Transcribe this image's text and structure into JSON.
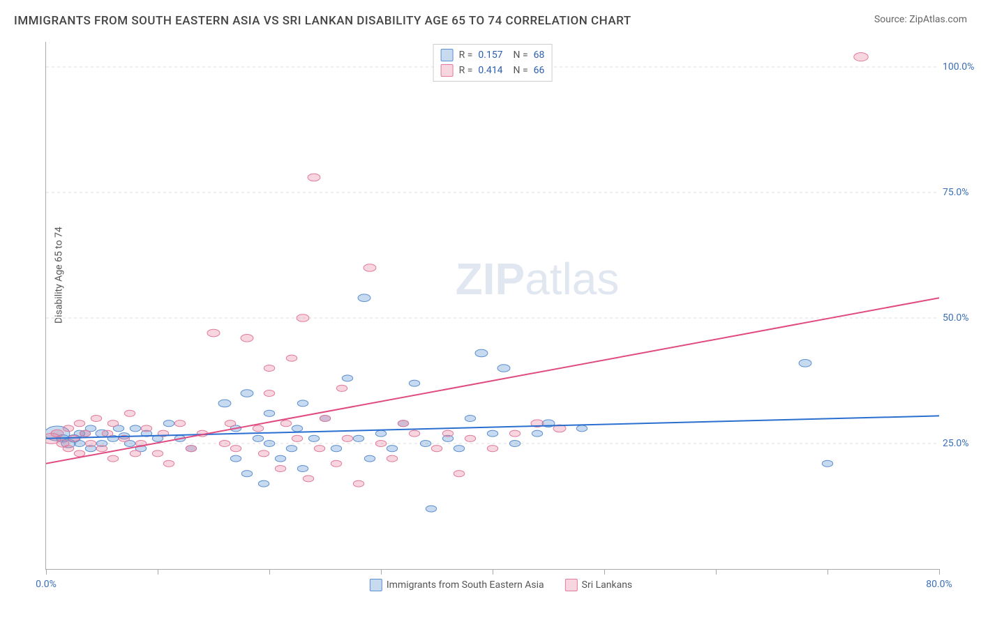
{
  "title": "IMMIGRANTS FROM SOUTH EASTERN ASIA VS SRI LANKAN DISABILITY AGE 65 TO 74 CORRELATION CHART",
  "source": "Source: ZipAtlas.com",
  "ylabel": "Disability Age 65 to 74",
  "watermark_a": "ZIP",
  "watermark_b": "atlas",
  "chart": {
    "type": "scatter-with-regression",
    "xlim": [
      0,
      80
    ],
    "ylim": [
      0,
      105
    ],
    "xtick_positions": [
      0,
      10,
      20,
      30,
      40,
      50,
      60,
      70,
      80
    ],
    "xtick_labels": {
      "0": "0.0%",
      "80": "80.0%"
    },
    "ytick_positions": [
      25,
      50,
      75,
      100
    ],
    "ytick_labels": {
      "25": "25.0%",
      "50": "50.0%",
      "75": "75.0%",
      "100": "100.0%"
    },
    "background_color": "#ffffff",
    "grid_color": "#dddddd",
    "series": [
      {
        "name": "Immigrants from South Eastern Asia",
        "fill": "rgba(96,150,210,0.35)",
        "stroke": "#5a8fd0",
        "line_color": "#2a6fd0",
        "R": "0.157",
        "N": "68",
        "reg_y0": 26.0,
        "reg_y1": 30.5,
        "points": [
          [
            1,
            27,
            14
          ],
          [
            1.5,
            26,
            7
          ],
          [
            2,
            25,
            8
          ],
          [
            2.5,
            26,
            7
          ],
          [
            3,
            27,
            6
          ],
          [
            3,
            25,
            6
          ],
          [
            3.5,
            27,
            6
          ],
          [
            4,
            24,
            6
          ],
          [
            4,
            28,
            6
          ],
          [
            5,
            27,
            7
          ],
          [
            5,
            25,
            6
          ],
          [
            6,
            26,
            6
          ],
          [
            6.5,
            28,
            6
          ],
          [
            7,
            26.5,
            6
          ],
          [
            7.5,
            25,
            6
          ],
          [
            8,
            28,
            6
          ],
          [
            8.5,
            24,
            6
          ],
          [
            9,
            27,
            6
          ],
          [
            10,
            26,
            6
          ],
          [
            11,
            29,
            6
          ],
          [
            12,
            26,
            6
          ],
          [
            13,
            24,
            6
          ],
          [
            16,
            33,
            7
          ],
          [
            17,
            28,
            6
          ],
          [
            17,
            22,
            6
          ],
          [
            18,
            19,
            6
          ],
          [
            18,
            35,
            7
          ],
          [
            19,
            26,
            6
          ],
          [
            19.5,
            17,
            6
          ],
          [
            20,
            31,
            6
          ],
          [
            20,
            25,
            6
          ],
          [
            21,
            22,
            6
          ],
          [
            22,
            24,
            6
          ],
          [
            22.5,
            28,
            6
          ],
          [
            23,
            33,
            6
          ],
          [
            23,
            20,
            6
          ],
          [
            24,
            26,
            6
          ],
          [
            25,
            30,
            6
          ],
          [
            26,
            24,
            6
          ],
          [
            27,
            38,
            6
          ],
          [
            28,
            26,
            6
          ],
          [
            28.5,
            54,
            7
          ],
          [
            29,
            22,
            6
          ],
          [
            30,
            27,
            6
          ],
          [
            31,
            24,
            6
          ],
          [
            32,
            29,
            6
          ],
          [
            33,
            37,
            6
          ],
          [
            34,
            25,
            6
          ],
          [
            34.5,
            12,
            6
          ],
          [
            36,
            26,
            6
          ],
          [
            37,
            24,
            6
          ],
          [
            38,
            30,
            6
          ],
          [
            39,
            43,
            7
          ],
          [
            40,
            27,
            6
          ],
          [
            41,
            40,
            7
          ],
          [
            42,
            25,
            6
          ],
          [
            44,
            27,
            6
          ],
          [
            45,
            29,
            7
          ],
          [
            48,
            28,
            6
          ],
          [
            68,
            41,
            7
          ],
          [
            70,
            21,
            6
          ]
        ]
      },
      {
        "name": "Sri Lankans",
        "fill": "rgba(230,120,150,0.30)",
        "stroke": "#e27a9a",
        "line_color": "#e04a80",
        "R": "0.414",
        "N": "66",
        "reg_y0": 21.0,
        "reg_y1": 54.0,
        "points": [
          [
            0.5,
            26,
            10
          ],
          [
            1,
            27,
            7
          ],
          [
            1.5,
            25,
            7
          ],
          [
            2,
            28,
            6
          ],
          [
            2,
            24,
            6
          ],
          [
            2.5,
            26,
            6
          ],
          [
            3,
            29,
            6
          ],
          [
            3,
            23,
            6
          ],
          [
            3.5,
            27,
            6
          ],
          [
            4,
            25,
            6
          ],
          [
            4.5,
            30,
            6
          ],
          [
            5,
            24,
            6
          ],
          [
            5.5,
            27,
            6
          ],
          [
            6,
            22,
            6
          ],
          [
            6,
            29,
            6
          ],
          [
            7,
            26,
            6
          ],
          [
            7.5,
            31,
            6
          ],
          [
            8,
            23,
            6
          ],
          [
            8.5,
            25,
            6
          ],
          [
            9,
            28,
            6
          ],
          [
            10,
            23,
            6
          ],
          [
            10.5,
            27,
            6
          ],
          [
            11,
            21,
            6
          ],
          [
            12,
            29,
            6
          ],
          [
            13,
            24,
            6
          ],
          [
            14,
            27,
            6
          ],
          [
            15,
            47,
            7
          ],
          [
            16,
            25,
            6
          ],
          [
            16.5,
            29,
            6
          ],
          [
            17,
            24,
            6
          ],
          [
            18,
            46,
            7
          ],
          [
            19,
            28,
            6
          ],
          [
            19.5,
            23,
            6
          ],
          [
            20,
            40,
            6
          ],
          [
            20,
            35,
            6
          ],
          [
            21,
            20,
            6
          ],
          [
            21.5,
            29,
            6
          ],
          [
            22,
            42,
            6
          ],
          [
            22.5,
            26,
            6
          ],
          [
            23,
            50,
            7
          ],
          [
            23.5,
            18,
            6
          ],
          [
            24,
            78,
            7
          ],
          [
            24.5,
            24,
            6
          ],
          [
            25,
            30,
            6
          ],
          [
            26,
            21,
            6
          ],
          [
            26.5,
            36,
            6
          ],
          [
            27,
            26,
            6
          ],
          [
            28,
            17,
            6
          ],
          [
            29,
            60,
            7
          ],
          [
            30,
            25,
            6
          ],
          [
            31,
            22,
            6
          ],
          [
            32,
            29,
            6
          ],
          [
            33,
            27,
            6
          ],
          [
            35,
            24,
            6
          ],
          [
            36,
            27,
            6
          ],
          [
            37,
            19,
            6
          ],
          [
            38,
            26,
            6
          ],
          [
            40,
            24,
            6
          ],
          [
            42,
            27,
            6
          ],
          [
            44,
            29,
            7
          ],
          [
            46,
            28,
            7
          ],
          [
            73,
            102,
            8
          ]
        ]
      }
    ]
  },
  "legend_top": [
    {
      "swatch_fill": "rgba(96,150,210,0.35)",
      "swatch_stroke": "#5a8fd0",
      "R": "0.157",
      "N": "68"
    },
    {
      "swatch_fill": "rgba(230,120,150,0.30)",
      "swatch_stroke": "#e27a9a",
      "R": "0.414",
      "N": "66"
    }
  ],
  "legend_bottom": [
    {
      "swatch_fill": "rgba(96,150,210,0.35)",
      "swatch_stroke": "#5a8fd0",
      "label": "Immigrants from South Eastern Asia"
    },
    {
      "swatch_fill": "rgba(230,120,150,0.30)",
      "swatch_stroke": "#e27a9a",
      "label": "Sri Lankans"
    }
  ]
}
